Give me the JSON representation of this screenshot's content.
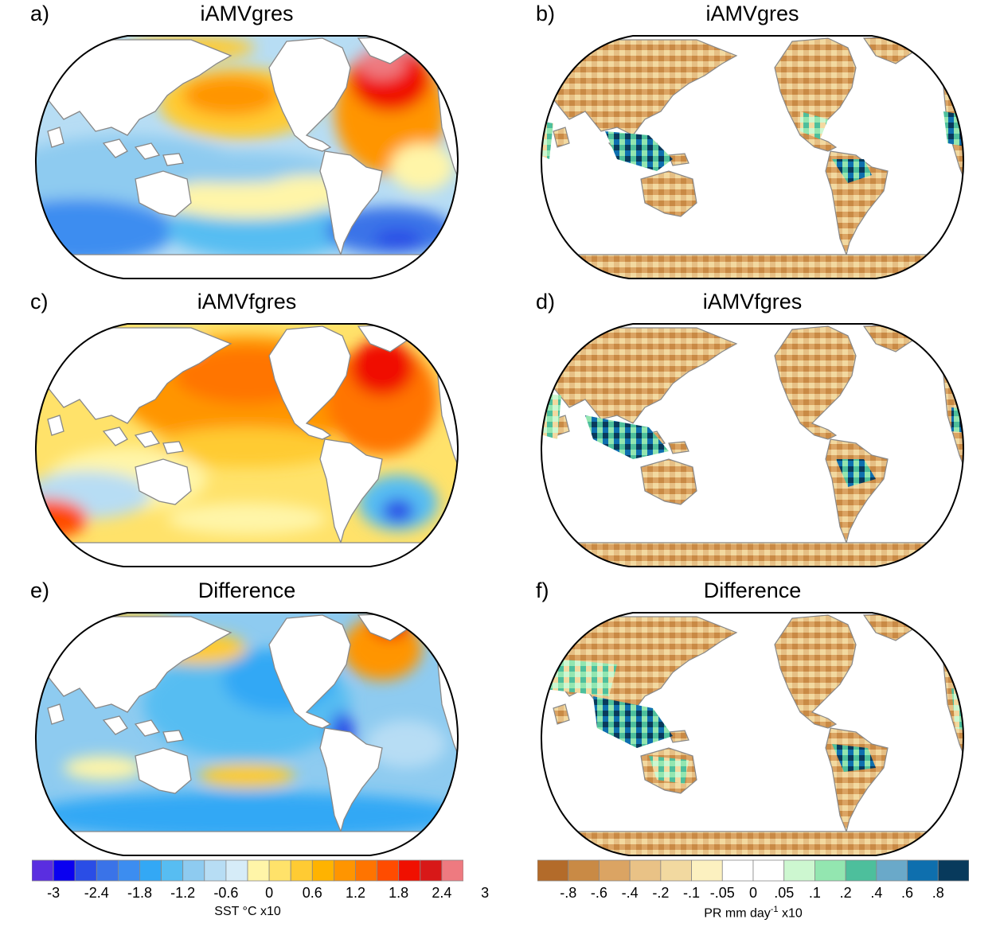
{
  "panels": [
    {
      "letter": "a)",
      "title": "iAMVgres",
      "variable": "SST"
    },
    {
      "letter": "b)",
      "title": "iAMVgres",
      "variable": "PR"
    },
    {
      "letter": "c)",
      "title": "iAMVfgres",
      "variable": "SST"
    },
    {
      "letter": "d)",
      "title": "iAMVfgres",
      "variable": "PR"
    },
    {
      "letter": "e)",
      "title": "Difference",
      "variable": "SST"
    },
    {
      "letter": "f)",
      "title": "Difference",
      "variable": "PR"
    }
  ],
  "sst_colorbar": {
    "colors": [
      "#5a2ee0",
      "#0a00f0",
      "#2a4de6",
      "#3a73e8",
      "#3c8df0",
      "#33a8f5",
      "#57bdf2",
      "#8ecbf0",
      "#b7ddf4",
      "#d6ecf8",
      "#fff5a8",
      "#ffe26a",
      "#ffcb33",
      "#ffb300",
      "#ff9500",
      "#ff7400",
      "#ff4c00",
      "#f01000",
      "#d81818",
      "#ee7a80"
    ],
    "tick_labels": [
      "-3",
      "-2.4",
      "-1.8",
      "-1.2",
      "-0.6",
      "0",
      "0.6",
      "1.2",
      "1.8",
      "2.4",
      "3"
    ],
    "label": "SST °C x10"
  },
  "pr_colorbar": {
    "colors": [
      "#b36b2a",
      "#c98a45",
      "#dba463",
      "#e9c286",
      "#f2d9a0",
      "#fcf1c0",
      "#ffffff",
      "#ffffff",
      "#cdf7d0",
      "#93e6b0",
      "#4dbf9c",
      "#6aa9c9",
      "#0e6fae",
      "#083a5c"
    ],
    "tick_labels": [
      "-.8",
      "-.6",
      "-.4",
      "-.2",
      "-.1",
      "-.05",
      "0",
      ".05",
      ".1",
      ".2",
      ".4",
      ".6",
      ".8"
    ],
    "label_main": "PR mm day",
    "label_sup": "-1",
    "label_end": " x10"
  },
  "colors": {
    "land": "#ffffff",
    "coast": "#888888",
    "frame": "#000000"
  }
}
